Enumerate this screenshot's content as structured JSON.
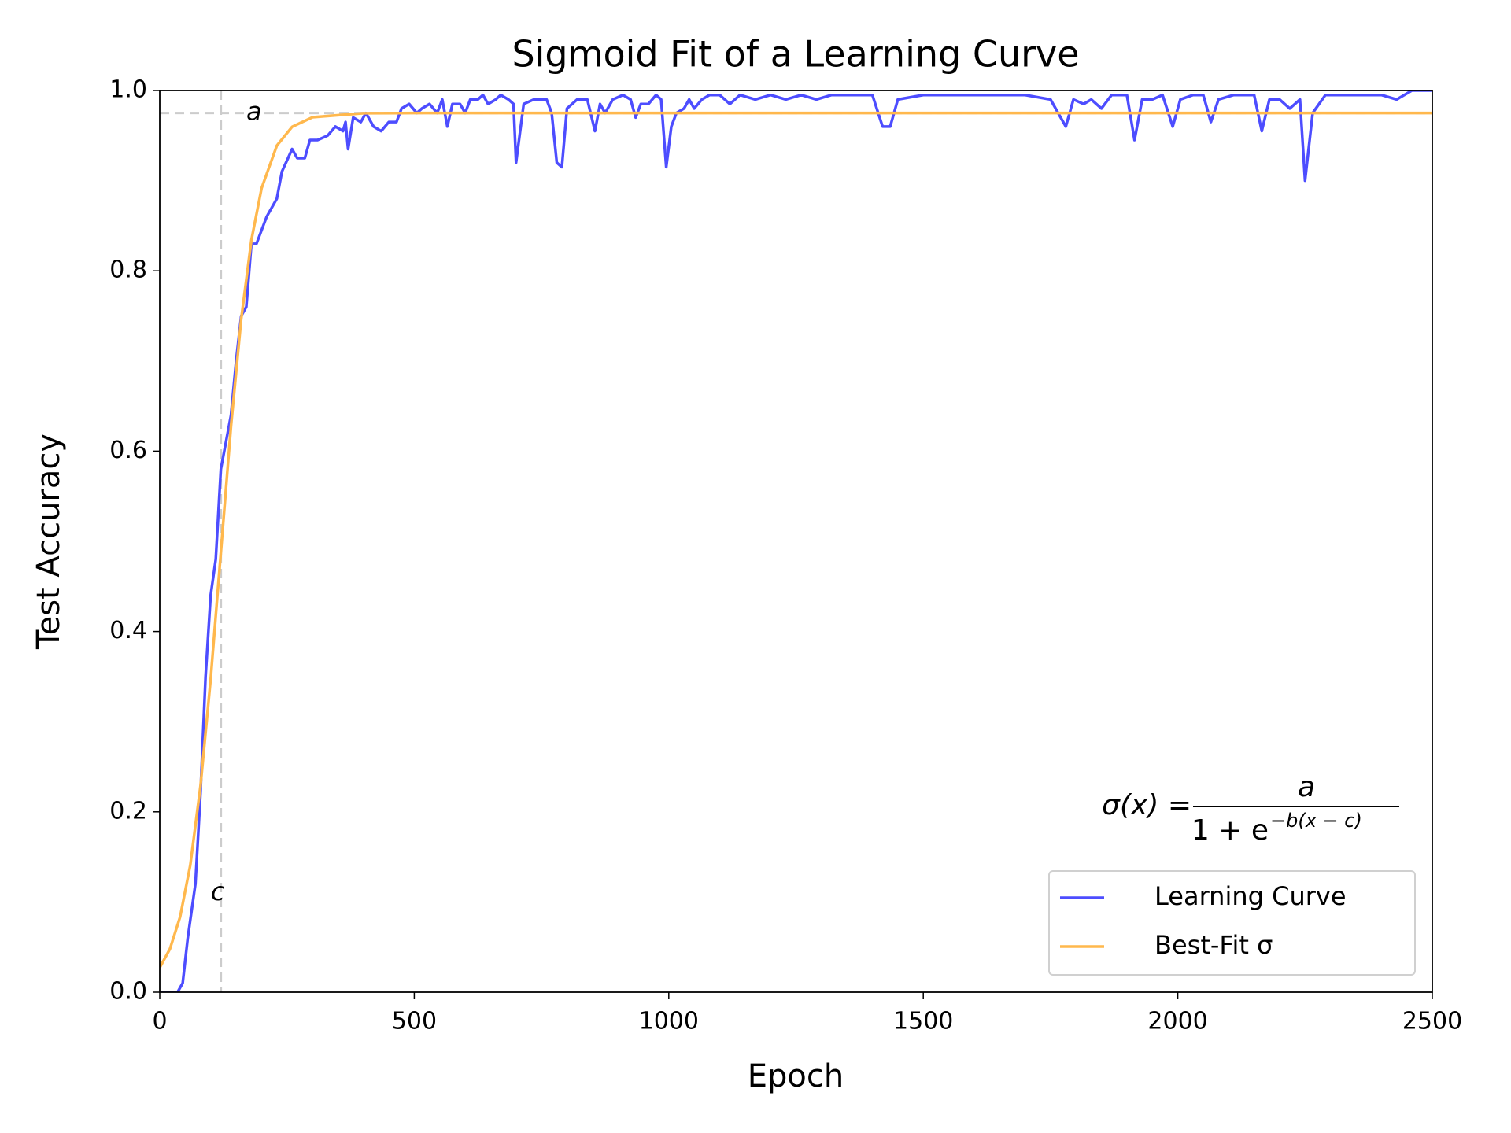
{
  "chart_data": {
    "type": "line",
    "title": "Sigmoid Fit of a Learning Curve",
    "x_label": "Epoch",
    "y_label": "Test Accuracy",
    "xlim": [
      0,
      2500
    ],
    "ylim": [
      0,
      1
    ],
    "xticks": [
      0,
      500,
      1000,
      1500,
      2000,
      2500
    ],
    "yticks": [
      {
        "value": 0,
        "label": "0.0"
      },
      0.2,
      0.4,
      0.6,
      0.8,
      {
        "value": 1,
        "label": "1.0"
      }
    ],
    "legend": "lower right",
    "series": [
      {
        "name": "Learning Curve",
        "color": "#4d4dff",
        "x": [
          0,
          35,
          45,
          55,
          70,
          80,
          90,
          100,
          110,
          120,
          130,
          140,
          150,
          160,
          170,
          180,
          190,
          210,
          230,
          240,
          260,
          270,
          285,
          295,
          310,
          330,
          345,
          360,
          365,
          370,
          380,
          395,
          405,
          420,
          435,
          450,
          465,
          475,
          490,
          505,
          515,
          530,
          545,
          555,
          565,
          575,
          590,
          600,
          610,
          625,
          635,
          645,
          660,
          670,
          685,
          695,
          700,
          715,
          735,
          760,
          770,
          780,
          790,
          800,
          820,
          840,
          855,
          865,
          875,
          890,
          910,
          925,
          935,
          945,
          960,
          975,
          985,
          995,
          1005,
          1015,
          1030,
          1040,
          1050,
          1065,
          1080,
          1100,
          1120,
          1140,
          1170,
          1200,
          1230,
          1260,
          1290,
          1320,
          1360,
          1400,
          1420,
          1435,
          1450,
          1500,
          1550,
          1600,
          1650,
          1700,
          1750,
          1780,
          1795,
          1815,
          1830,
          1850,
          1870,
          1900,
          1915,
          1930,
          1950,
          1970,
          1990,
          2005,
          2030,
          2050,
          2065,
          2080,
          2110,
          2150,
          2165,
          2180,
          2200,
          2220,
          2240,
          2250,
          2265,
          2290,
          2330,
          2370,
          2400,
          2430,
          2460,
          2500
        ],
        "values": [
          0,
          0,
          0.01,
          0.06,
          0.12,
          0.22,
          0.35,
          0.44,
          0.48,
          0.58,
          0.61,
          0.64,
          0.7,
          0.75,
          0.76,
          0.83,
          0.83,
          0.86,
          0.88,
          0.91,
          0.935,
          0.925,
          0.925,
          0.945,
          0.945,
          0.95,
          0.96,
          0.955,
          0.965,
          0.935,
          0.97,
          0.965,
          0.975,
          0.96,
          0.955,
          0.965,
          0.965,
          0.98,
          0.985,
          0.975,
          0.98,
          0.985,
          0.975,
          0.99,
          0.96,
          0.985,
          0.985,
          0.975,
          0.99,
          0.99,
          0.995,
          0.985,
          0.99,
          0.995,
          0.99,
          0.985,
          0.92,
          0.985,
          0.99,
          0.99,
          0.975,
          0.92,
          0.915,
          0.98,
          0.99,
          0.99,
          0.955,
          0.985,
          0.975,
          0.99,
          0.995,
          0.99,
          0.97,
          0.985,
          0.985,
          0.995,
          0.99,
          0.915,
          0.96,
          0.975,
          0.98,
          0.99,
          0.98,
          0.99,
          0.995,
          0.995,
          0.985,
          0.995,
          0.99,
          0.995,
          0.99,
          0.995,
          0.99,
          0.995,
          0.995,
          0.995,
          0.96,
          0.96,
          0.99,
          0.995,
          0.995,
          0.995,
          0.995,
          0.995,
          0.99,
          0.96,
          0.99,
          0.985,
          0.99,
          0.98,
          0.995,
          0.995,
          0.945,
          0.99,
          0.99,
          0.995,
          0.96,
          0.99,
          0.995,
          0.995,
          0.965,
          0.99,
          0.995,
          0.995,
          0.955,
          0.99,
          0.99,
          0.98,
          0.99,
          0.9,
          0.975,
          0.995,
          0.995,
          0.995,
          0.995,
          0.99,
          1,
          1
        ]
      },
      {
        "name": "Best-Fit σ",
        "color": "#ffb84d",
        "x": [
          0,
          20,
          40,
          60,
          80,
          100,
          120,
          140,
          160,
          180,
          200,
          230,
          260,
          300,
          400,
          500,
          1000,
          1500,
          2000,
          2500
        ],
        "values": [
          0.0272,
          0.048,
          0.0835,
          0.141,
          0.2285,
          0.347,
          0.4875,
          0.628,
          0.7465,
          0.834,
          0.8915,
          0.9388,
          0.9597,
          0.9703,
          0.9748,
          0.975,
          0.975,
          0.975,
          0.975,
          0.975
        ]
      }
    ],
    "reference_lines": [
      {
        "axis": "y",
        "value": 0.975,
        "label": "a",
        "color": "#cccccc"
      },
      {
        "axis": "x",
        "value": 120,
        "label": "c",
        "color": "#cccccc"
      }
    ],
    "formula": {
      "lhs": "σ(x) =",
      "numerator": "a",
      "denominator": "1 + e",
      "exponent": "−b(x − c)"
    }
  }
}
